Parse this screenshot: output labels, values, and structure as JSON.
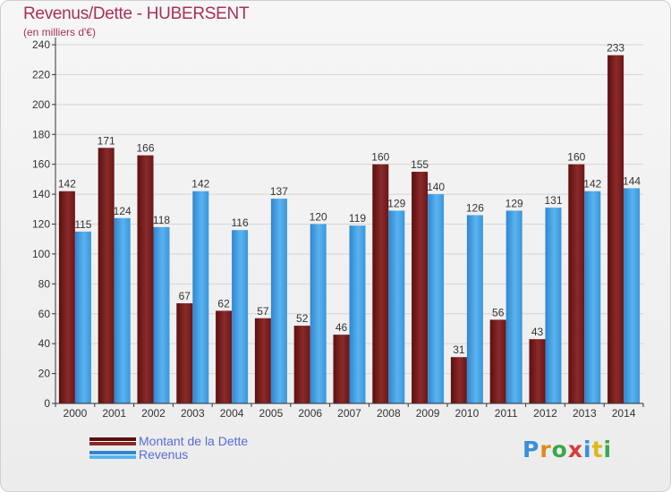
{
  "header": {
    "title": "Revenus/Dette - HUBERSENT",
    "subtitle": "(en milliers d'€)"
  },
  "legend": {
    "items": [
      {
        "label": "Montant de la Dette",
        "color": "#7a1c1c"
      },
      {
        "label": "Revenus",
        "color": "#3b9be3"
      }
    ]
  },
  "logo": {
    "letters": [
      "P",
      "r",
      "o",
      "x",
      "i",
      "t",
      "i"
    ],
    "colors": [
      "#3a8fd8",
      "#e08a1a",
      "#3aa84a",
      "#d83a3a",
      "#3a8fd8",
      "#e0b81a",
      "#3aa84a"
    ]
  },
  "chart_data": {
    "type": "bar",
    "categories": [
      "2000",
      "2001",
      "2002",
      "2003",
      "2004",
      "2005",
      "2006",
      "2007",
      "2008",
      "2009",
      "2010",
      "2011",
      "2012",
      "2013",
      "2014"
    ],
    "series": [
      {
        "name": "Montant de la Dette",
        "color": "#7a1c1c",
        "values": [
          142,
          171,
          166,
          67,
          62,
          57,
          52,
          46,
          160,
          155,
          31,
          56,
          43,
          160,
          233
        ]
      },
      {
        "name": "Revenus",
        "color": "#3b9be3",
        "values": [
          115,
          124,
          118,
          142,
          116,
          137,
          120,
          119,
          129,
          140,
          126,
          129,
          131,
          142,
          144
        ]
      }
    ],
    "ylim": [
      0,
      240
    ],
    "yticks": [
      0,
      20,
      40,
      60,
      80,
      100,
      120,
      140,
      160,
      180,
      200,
      220,
      240
    ],
    "grid": true,
    "legend_position": "bottom-left"
  }
}
